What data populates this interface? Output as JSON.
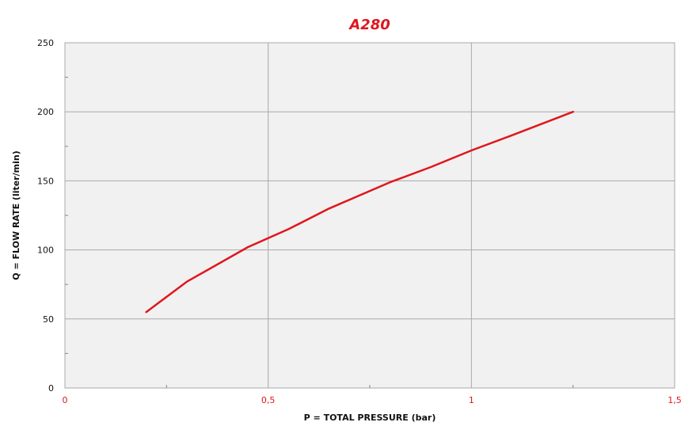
{
  "colors": {
    "accent": "#e0161b",
    "plot_bg": "#f1f1f1",
    "grid": "#a9a9a9",
    "minor_tick": "#888888",
    "axis_text": "#111111"
  },
  "chart_data": {
    "type": "line",
    "title": "A280",
    "xlabel": "P = TOTAL PRESSURE (bar)",
    "ylabel": "Q = FLOW RATE (liter/min)",
    "xlim": [
      0,
      1.5
    ],
    "ylim": [
      0,
      250
    ],
    "x_ticks": [
      0,
      0.5,
      1,
      1.5
    ],
    "x_tick_labels": [
      "0",
      "0,5",
      "1",
      "1,5"
    ],
    "y_ticks": [
      0,
      50,
      100,
      150,
      200,
      250
    ],
    "y_tick_labels": [
      "0",
      "50",
      "100",
      "150",
      "200",
      "250"
    ],
    "grid": true,
    "legend": "none",
    "series": [
      {
        "color": "#e0161b",
        "x": [
          0.2,
          0.3,
          0.45,
          0.55,
          0.65,
          0.8,
          0.9,
          1.0,
          1.1,
          1.25
        ],
        "y": [
          55,
          77,
          102,
          115,
          130,
          149,
          160,
          172,
          183,
          200
        ]
      }
    ]
  }
}
